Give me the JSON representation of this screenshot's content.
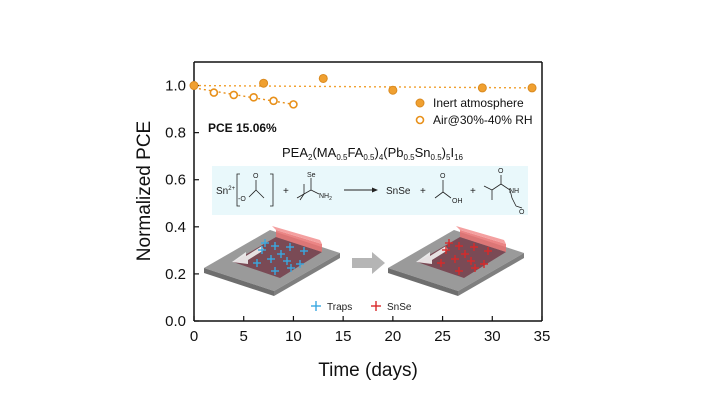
{
  "chart_data": {
    "type": "scatter",
    "xlabel": "Time (days)",
    "ylabel": "Normalized PCE",
    "xlim": [
      0,
      35
    ],
    "ylim": [
      0.0,
      1.1
    ],
    "xticks": [
      "0",
      "5",
      "10",
      "15",
      "20",
      "25",
      "30",
      "35"
    ],
    "yticks": [
      "0.0",
      "0.2",
      "0.4",
      "0.6",
      "0.8",
      "1.0"
    ],
    "grid": false,
    "legend_position": "top-right",
    "series": [
      {
        "name": "Inert atmosphere",
        "marker": "filled-circle",
        "color": "#F0A030",
        "x": [
          0,
          7,
          13,
          20,
          29,
          34
        ],
        "y": [
          1.0,
          1.01,
          1.03,
          0.98,
          0.99,
          0.99
        ],
        "trend": [
          [
            0,
            1.0
          ],
          [
            34,
            0.99
          ]
        ]
      },
      {
        "name": "Air@30%-40% RH",
        "marker": "open-circle",
        "color": "#E8901A",
        "x": [
          2,
          4,
          6,
          8,
          10
        ],
        "y": [
          0.97,
          0.96,
          0.95,
          0.935,
          0.92
        ],
        "trend": [
          [
            0,
            0.99
          ],
          [
            10,
            0.92
          ]
        ]
      }
    ]
  },
  "annotations": {
    "pce": "PCE 15.06%",
    "formula": {
      "p1": "PEA",
      "s1": "2",
      "p2": "(MA",
      "s2": "0.5",
      "p3": "FA",
      "s3": "0.5",
      "p4": ")",
      "s4": "4",
      "p5": "(Pb",
      "s5": "0.5",
      "p6": "Sn",
      "s6": "0.5",
      "p7": ")",
      "s7": "5",
      "p8": "I",
      "s8": "16"
    },
    "reaction": {
      "sn": "Sn",
      "sn_charge": "2+",
      "acetate_o": "O",
      "acetate_neg": "-O",
      "plus": "+",
      "se": "Se",
      "nh2": "NH",
      "nh2_sub": "2",
      "product1": "SnSe",
      "oh": "OH",
      "o": "O",
      "nh": "NH"
    },
    "inset_legend": {
      "traps": "Traps",
      "snse": "SnSe"
    }
  },
  "colors": {
    "inert": "#F0A030",
    "air": "#E8901A",
    "reaction_bg": "#E9F8FB",
    "trap": "#3AA8E0",
    "snse": "#D82A2A",
    "film": "#7A4A55",
    "substrate": "#8E8E8E",
    "blade": "#E87070",
    "arrow": "#B5B5B5"
  }
}
